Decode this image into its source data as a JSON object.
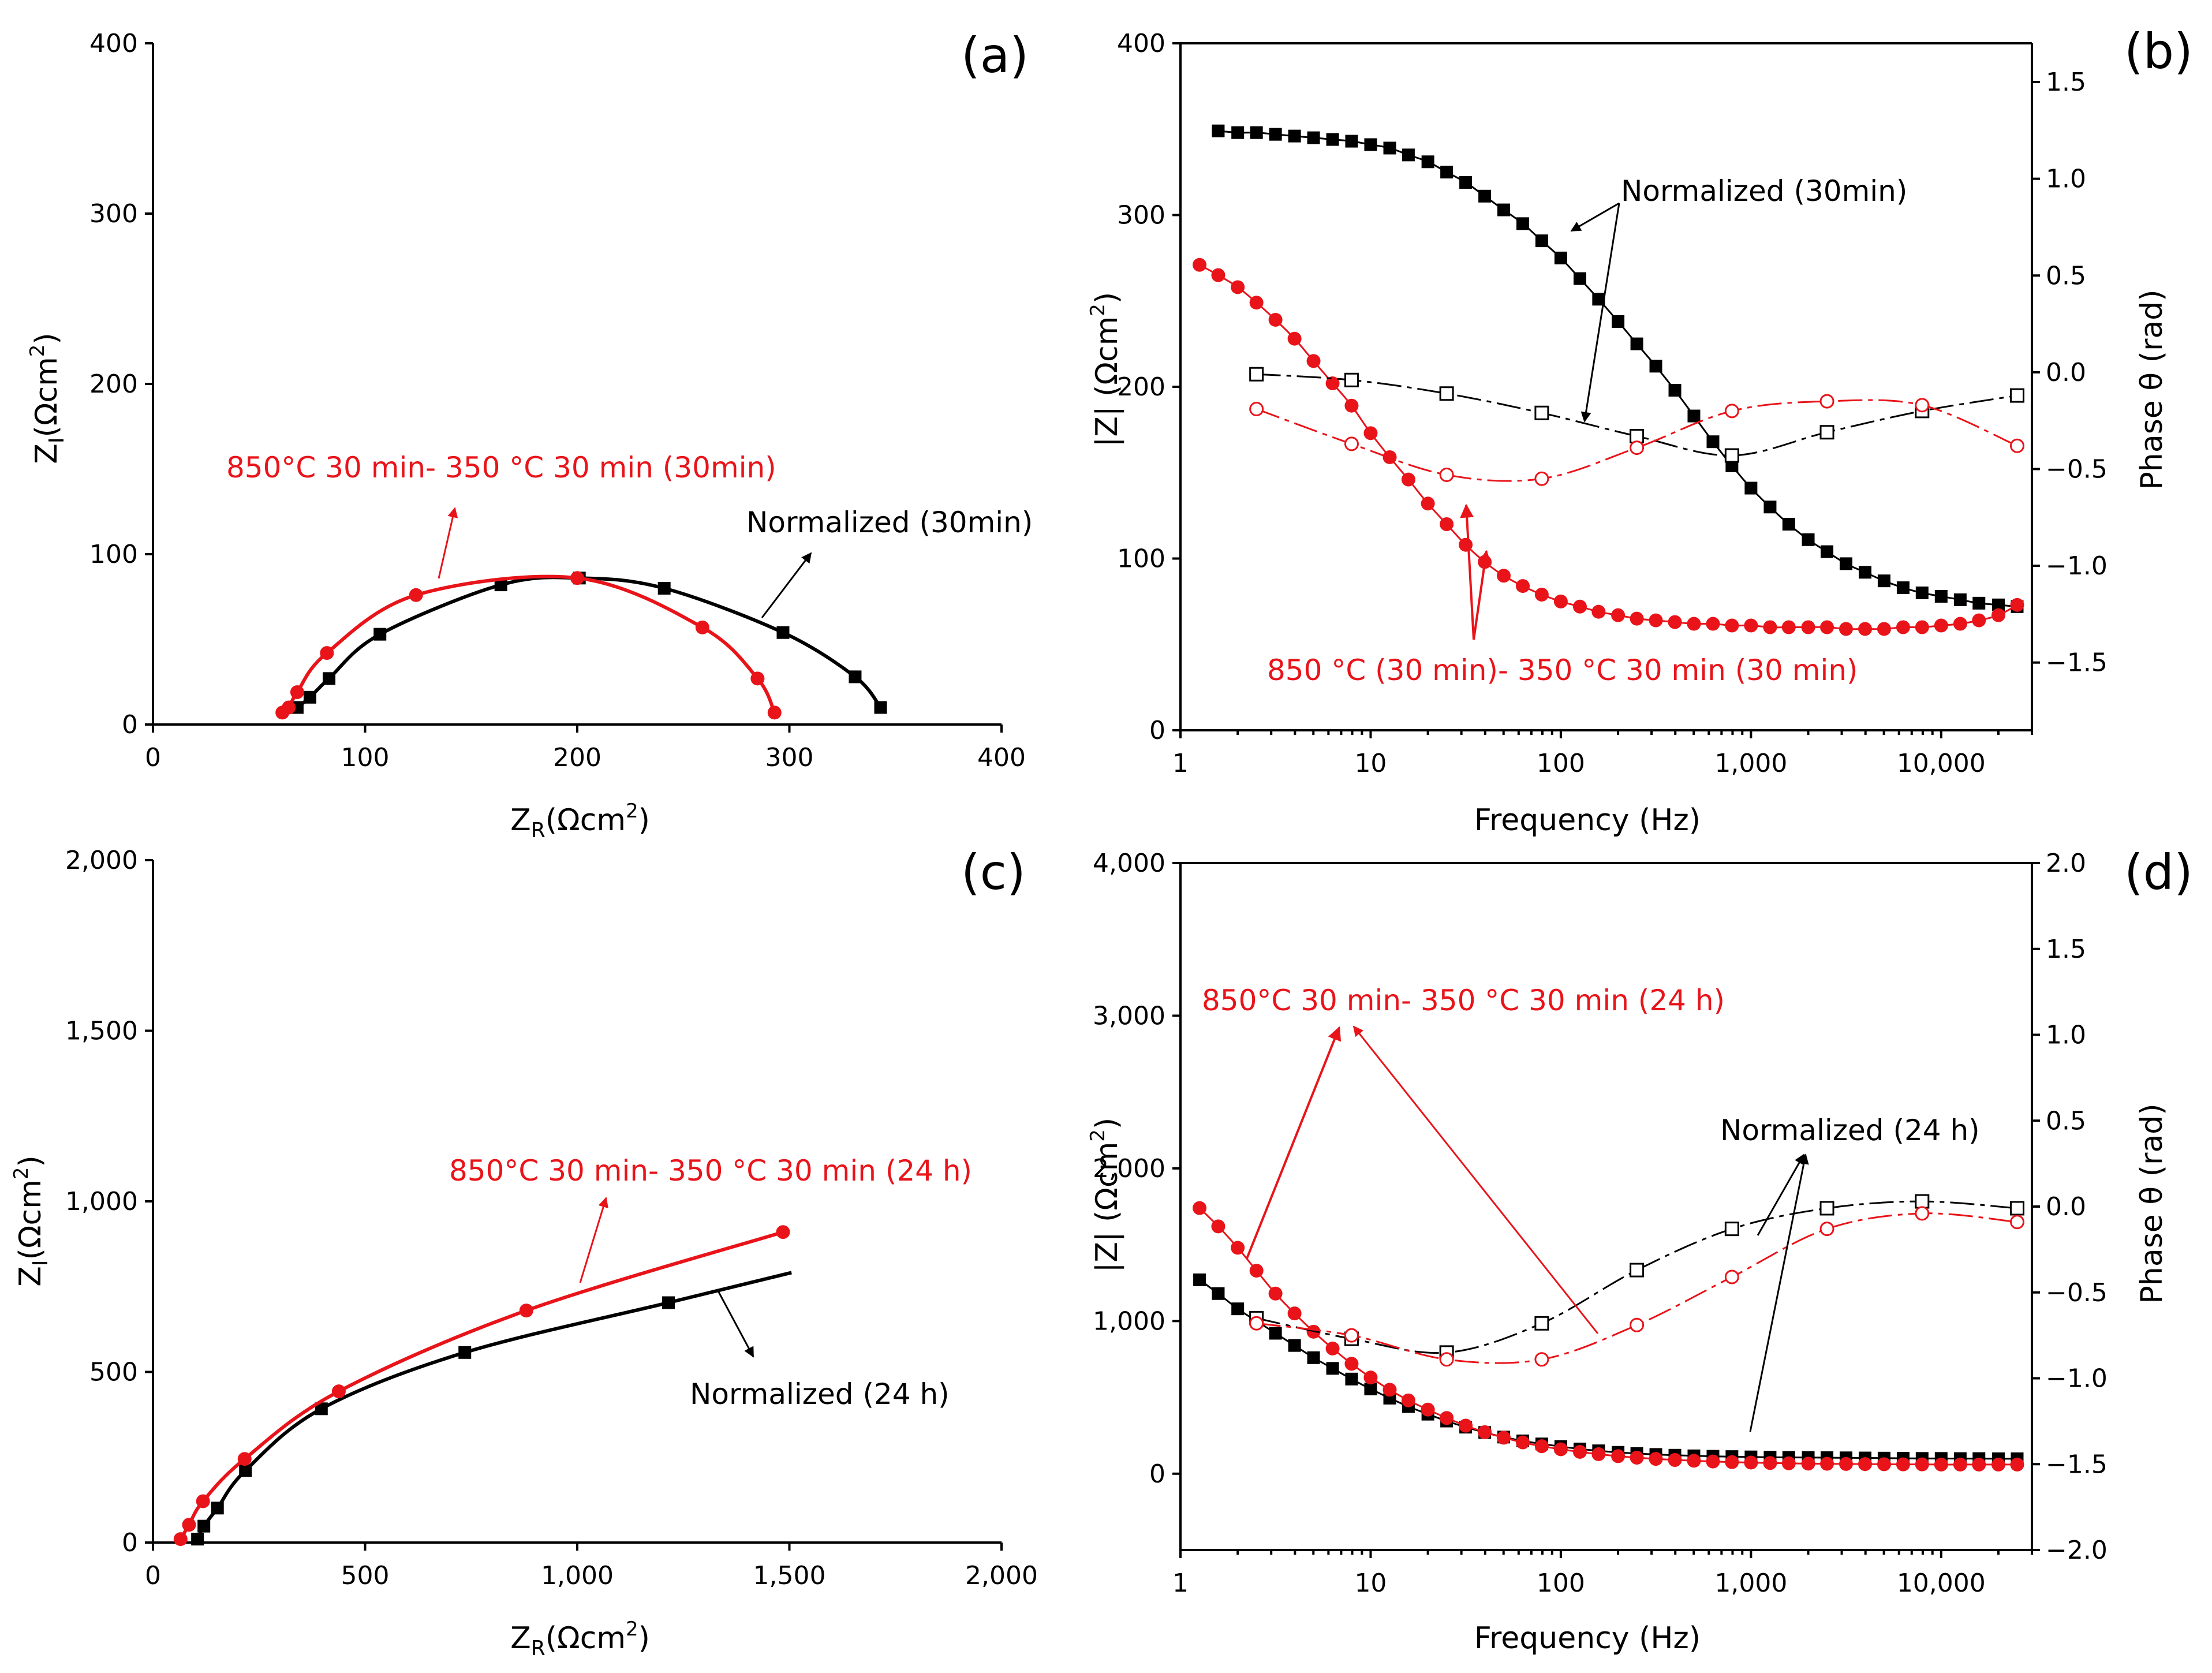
{
  "colors": {
    "black": "#000000",
    "red": "#e8141a"
  },
  "chart_data": [
    {
      "id": "a",
      "type": "scatter",
      "panel_label": "(a)",
      "xlabel_main": "Z",
      "xlabel_sub": "R",
      "xlabel_tail": "(Ωcm",
      "xlabel_sup": "2",
      "xlabel_close": ")",
      "ylabel_main": "Z",
      "ylabel_sub": "I",
      "ylabel_tail": "(Ωcm",
      "ylabel_sup": "2",
      "ylabel_close": ")",
      "xlim": [
        0,
        400
      ],
      "ylim": [
        0,
        400
      ],
      "xticks": [
        0,
        100,
        200,
        300,
        400
      ],
      "xtick_labels": [
        "0",
        "100",
        "200",
        "300",
        "400"
      ],
      "yticks": [
        0,
        100,
        200,
        300,
        400
      ],
      "ytick_labels": [
        "0",
        "100",
        "200",
        "300",
        "400"
      ],
      "series": [
        {
          "name": "Normalized (30min)",
          "color": "#000000",
          "marker": "square",
          "x": [
            68,
            74,
            83,
            107,
            164,
            201,
            241,
            297,
            331,
            343
          ],
          "y": [
            10,
            16,
            27,
            53,
            82,
            86,
            80,
            54,
            28,
            10
          ]
        },
        {
          "name": "850°C 30 min- 350 °C 30 min (30min)",
          "color": "#e8141a",
          "marker": "circle",
          "x": [
            61,
            64,
            68,
            82,
            124,
            200,
            259,
            285,
            293
          ],
          "y": [
            7,
            10,
            19,
            42,
            76,
            86,
            57,
            27,
            7
          ]
        }
      ],
      "annotations": [
        {
          "text": "850°C 30 min- 350 °C 30 min (30min)",
          "color": "#e8141a"
        },
        {
          "text": "Normalized (30min)",
          "color": "#000000"
        }
      ]
    },
    {
      "id": "b",
      "type": "scatter",
      "panel_label": "(b)",
      "xlabel": "Frequency (Hz)",
      "ylabel": "|Z| (Ωcm",
      "ylabel_sup": "2",
      "ylabel_close": ")",
      "y2label": "Phase θ (rad)",
      "xscale": "log",
      "xlim": [
        1,
        30000
      ],
      "ylim": [
        0,
        400
      ],
      "y2lim": [
        -1.85,
        1.7
      ],
      "xticks": [
        1,
        10,
        100,
        1000,
        10000
      ],
      "xtick_labels": [
        "1",
        "10",
        "100",
        "1,000",
        "10,000"
      ],
      "yticks": [
        0,
        100,
        200,
        300,
        400
      ],
      "ytick_labels": [
        "0",
        "100",
        "200",
        "300",
        "400"
      ],
      "y2ticks": [
        -1.5,
        -1.0,
        -0.5,
        0.0,
        0.5,
        1.0,
        1.5
      ],
      "y2tick_labels": [
        "−1.5",
        "−1.0",
        "−0.5",
        "0.0",
        "0.5",
        "1.0",
        "1.5"
      ],
      "series": [
        {
          "name": "|Z| Normalized (30min)",
          "axis": "left",
          "color": "#000000",
          "marker": "square",
          "filled": true,
          "x": [
            1.58,
            2,
            2.51,
            3.16,
            3.98,
            5.01,
            6.31,
            7.94,
            10,
            12.6,
            15.8,
            20,
            25.1,
            31.6,
            39.8,
            50.1,
            63.1,
            79.4,
            100,
            126,
            158,
            200,
            251,
            316,
            398,
            501,
            631,
            794,
            1000,
            1260,
            1580,
            2000,
            2510,
            3160,
            3980,
            5010,
            6310,
            7940,
            10000,
            12600,
            15800,
            20000,
            25100
          ],
          "y": [
            349,
            348,
            348,
            347,
            346,
            345,
            344,
            343,
            341,
            339,
            335,
            331,
            325,
            319,
            311,
            303,
            295,
            285,
            275,
            263,
            251,
            238,
            225,
            212,
            198,
            183,
            168,
            154,
            141,
            130,
            120,
            111,
            104,
            97,
            92,
            87,
            83,
            80,
            78,
            76,
            74,
            73,
            72
          ]
        },
        {
          "name": "|Z| 850 °C (30 min)- 350 °C 30 min (30 min)",
          "axis": "left",
          "color": "#e8141a",
          "marker": "circle",
          "filled": true,
          "x": [
            1.26,
            1.58,
            2,
            2.51,
            3.16,
            3.98,
            5.01,
            6.31,
            7.94,
            10,
            12.6,
            15.8,
            20,
            25.1,
            31.6,
            39.8,
            50.1,
            63.1,
            79.4,
            100,
            126,
            158,
            200,
            251,
            316,
            398,
            501,
            631,
            794,
            1000,
            1260,
            1580,
            2000,
            2510,
            3160,
            3980,
            5010,
            6310,
            7940,
            10000,
            12600,
            15800,
            20000,
            25100
          ],
          "y": [
            271,
            265,
            258,
            249,
            239,
            228,
            215,
            202,
            189,
            173,
            159,
            146,
            132,
            120,
            108,
            98,
            90,
            84,
            79,
            75,
            72,
            69,
            67,
            65,
            64,
            63,
            62,
            62,
            61,
            61,
            60,
            60,
            60,
            60,
            59,
            59,
            59,
            60,
            60,
            61,
            62,
            64,
            67,
            73
          ]
        },
        {
          "name": "Phase Normalized (30min)",
          "axis": "right",
          "color": "#000000",
          "marker": "square",
          "filled": false,
          "x": [
            2.51,
            7.94,
            25.1,
            79.4,
            251,
            794,
            2510,
            7940,
            25100
          ],
          "y": [
            -0.01,
            -0.04,
            -0.11,
            -0.21,
            -0.33,
            -0.43,
            -0.31,
            -0.2,
            -0.12
          ]
        },
        {
          "name": "Phase 850 °C (30 min)- 350 °C 30 min (30 min)",
          "axis": "right",
          "color": "#e8141a",
          "marker": "circle",
          "filled": false,
          "x": [
            2.51,
            7.94,
            25.1,
            79.4,
            251,
            794,
            2510,
            7940,
            25100
          ],
          "y": [
            -0.19,
            -0.37,
            -0.53,
            -0.55,
            -0.39,
            -0.2,
            -0.15,
            -0.17,
            -0.38
          ]
        }
      ],
      "annotations": [
        {
          "text": "Normalized (30min)",
          "color": "#000000"
        },
        {
          "text": "850 °C (30 min)- 350 °C 30 min (30 min)",
          "color": "#e8141a"
        }
      ]
    },
    {
      "id": "c",
      "type": "scatter",
      "panel_label": "(c)",
      "xlabel_main": "Z",
      "xlabel_sub": "R",
      "xlabel_tail": "(Ωcm",
      "xlabel_sup": "2",
      "xlabel_close": ")",
      "ylabel_main": "Z",
      "ylabel_sub": "I",
      "ylabel_tail": "(Ωcm",
      "ylabel_sup": "2",
      "ylabel_close": ")",
      "xlim": [
        0,
        2000
      ],
      "ylim": [
        0,
        2000
      ],
      "xticks": [
        0,
        500,
        1000,
        1500,
        2000
      ],
      "xtick_labels": [
        "0",
        "500",
        "1,000",
        "1,500",
        "2,000"
      ],
      "yticks": [
        0,
        500,
        1000,
        1500,
        2000
      ],
      "ytick_labels": [
        "0",
        "500",
        "1,000",
        "1,500",
        "2,000"
      ],
      "series": [
        {
          "name": "Normalized (24 h)",
          "color": "#000000",
          "marker": "square",
          "x": [
            105,
            120,
            152,
            218,
            397,
            735,
            1215
          ],
          "y": [
            10,
            48,
            101,
            211,
            392,
            557,
            703
          ]
        },
        {
          "name": "850°C 30 min- 350 °C 30 min (24 h)",
          "color": "#e8141a",
          "marker": "circle",
          "x": [
            65,
            85,
            118,
            216,
            438,
            880,
            1485
          ],
          "y": [
            10,
            52,
            121,
            245,
            443,
            680,
            910
          ]
        }
      ],
      "annotations": [
        {
          "text": "850°C 30 min- 350 °C 30 min (24 h)",
          "color": "#e8141a"
        },
        {
          "text": "Normalized (24 h)",
          "color": "#000000"
        }
      ]
    },
    {
      "id": "d",
      "type": "scatter",
      "panel_label": "(d)",
      "xlabel": "Frequency (Hz)",
      "ylabel": "|Z| (Ωcm",
      "ylabel_sup": "2",
      "ylabel_close": ")",
      "y2label": "Phase θ (rad)",
      "xscale": "log",
      "xlim": [
        1,
        30000
      ],
      "ylim": [
        -500,
        4000
      ],
      "y2lim": [
        -2.0,
        2.0
      ],
      "xticks": [
        1,
        10,
        100,
        1000,
        10000
      ],
      "xtick_labels": [
        "1",
        "10",
        "100",
        "1,000",
        "10,000"
      ],
      "yticks": [
        0,
        1000,
        2000,
        3000,
        4000
      ],
      "ytick_labels": [
        "0",
        "1,000",
        "2,000",
        "3,000",
        "4,000"
      ],
      "y2ticks": [
        -2.0,
        -1.5,
        -1.0,
        -0.5,
        0.0,
        0.5,
        1.0,
        1.5,
        2.0
      ],
      "y2tick_labels": [
        "−2.0",
        "−1.5",
        "−1.0",
        "−0.5",
        "0.0",
        "0.5",
        "1.0",
        "1.5",
        "2.0"
      ],
      "series": [
        {
          "name": "|Z| Normalized (24 h)",
          "axis": "left",
          "color": "#000000",
          "marker": "square",
          "filled": true,
          "x": [
            1.26,
            1.58,
            2,
            2.51,
            3.16,
            3.98,
            5.01,
            6.31,
            7.94,
            10,
            12.6,
            15.8,
            20,
            25.1,
            31.6,
            39.8,
            50.1,
            63.1,
            79.4,
            100,
            126,
            158,
            200,
            251,
            316,
            398,
            501,
            631,
            794,
            1000,
            1260,
            1580,
            2000,
            2510,
            3160,
            3980,
            5010,
            6310,
            7940,
            10000,
            12600,
            15800,
            20000,
            25100
          ],
          "y": [
            1270,
            1180,
            1080,
            1000,
            920,
            840,
            760,
            690,
            620,
            555,
            495,
            440,
            390,
            345,
            305,
            270,
            240,
            215,
            195,
            178,
            162,
            150,
            140,
            132,
            126,
            121,
            117,
            114,
            112,
            110,
            108,
            107,
            106,
            105,
            104,
            103,
            102,
            101,
            100,
            100,
            99,
            99,
            98,
            98
          ]
        },
        {
          "name": "|Z| 850°C 30 min- 350 °C 30 min (24 h)",
          "axis": "left",
          "color": "#e8141a",
          "marker": "circle",
          "filled": true,
          "x": [
            1.26,
            1.58,
            2,
            2.51,
            3.16,
            3.98,
            5.01,
            6.31,
            7.94,
            10,
            12.6,
            15.8,
            20,
            25.1,
            31.6,
            39.8,
            50.1,
            63.1,
            79.4,
            100,
            126,
            158,
            200,
            251,
            316,
            398,
            501,
            631,
            794,
            1000,
            1260,
            1580,
            2000,
            2510,
            3160,
            3980,
            5010,
            6310,
            7940,
            10000,
            12600,
            15800,
            20000,
            25100
          ],
          "y": [
            1740,
            1620,
            1480,
            1330,
            1180,
            1050,
            930,
            820,
            720,
            630,
            550,
            480,
            420,
            365,
            315,
            272,
            236,
            205,
            180,
            160,
            143,
            128,
            115,
            105,
            97,
            90,
            85,
            80,
            76,
            73,
            70,
            68,
            66,
            65,
            64,
            63,
            62,
            61,
            61,
            60,
            60,
            60,
            60,
            60
          ]
        },
        {
          "name": "Phase Normalized (24 h)",
          "axis": "right",
          "color": "#000000",
          "marker": "square",
          "filled": false,
          "x": [
            2.51,
            7.94,
            25.1,
            79.4,
            251,
            794,
            2510,
            7940,
            25100
          ],
          "y": [
            -0.65,
            -0.77,
            -0.85,
            -0.68,
            -0.37,
            -0.13,
            -0.01,
            0.03,
            -0.01
          ]
        },
        {
          "name": "Phase 850°C 30 min- 350 °C 30 min (24 h)",
          "axis": "right",
          "color": "#e8141a",
          "marker": "circle",
          "filled": false,
          "x": [
            2.51,
            7.94,
            25.1,
            79.4,
            251,
            794,
            2510,
            7940,
            25100
          ],
          "y": [
            -0.68,
            -0.75,
            -0.89,
            -0.89,
            -0.69,
            -0.41,
            -0.13,
            -0.04,
            -0.09
          ]
        }
      ],
      "annotations": [
        {
          "text": "850°C 30 min- 350 °C 30 min (24 h)",
          "color": "#e8141a"
        },
        {
          "text": "Normalized (24 h)",
          "color": "#000000"
        }
      ]
    }
  ]
}
